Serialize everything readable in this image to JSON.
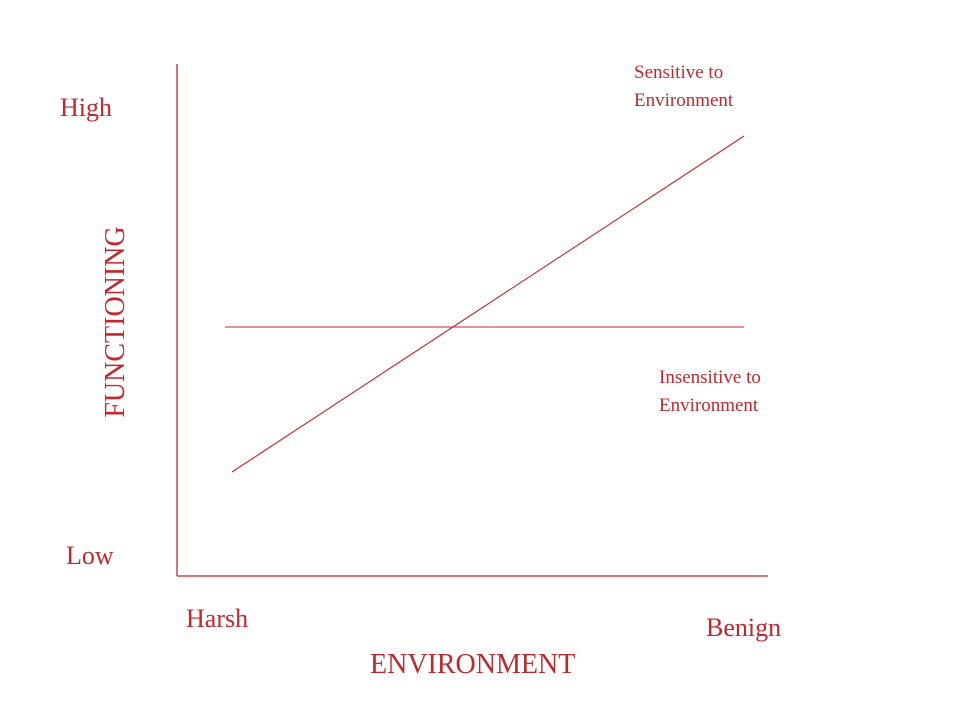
{
  "colors": {
    "ink": "#c0282d"
  },
  "y_axis": {
    "title": "FUNCTIONING",
    "high_label": "High",
    "low_label": "Low"
  },
  "x_axis": {
    "title": "ENVIRONMENT",
    "left_label": "Harsh",
    "right_label": "Benign"
  },
  "lines": [
    {
      "name": "sensitive",
      "label_line1": "Sensitive to",
      "label_line2": "Environment"
    },
    {
      "name": "insensitive",
      "label_line1": "Insensitive to",
      "label_line2": "Environment"
    }
  ]
}
